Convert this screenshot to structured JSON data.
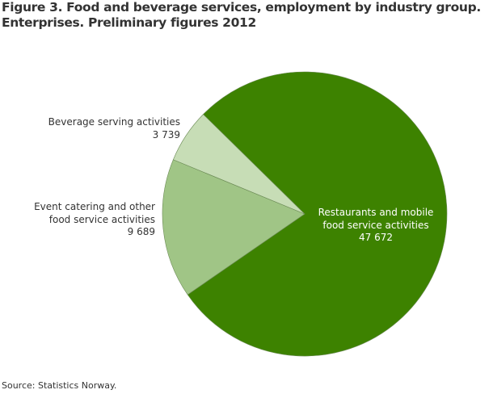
{
  "chart_data": {
    "type": "pie",
    "title": "Figure 3. Food and beverage services, employment by industry group. Enterprises. Preliminary figures 2012",
    "title_lines": [
      "Figure 3. Food and beverage services, employment by industry group.",
      "Enterprises. Preliminary figures 2012"
    ],
    "categories": [
      "Restaurants and mobile food service activities",
      "Event catering and other food service activities",
      "Beverage serving activities"
    ],
    "values": [
      47672,
      9689,
      3739
    ],
    "value_labels": [
      "47 672",
      "9 689",
      "3 739"
    ],
    "colors": [
      "#3d8200",
      "#a0c586",
      "#c7ddb6"
    ],
    "legend": "none (direct labels)",
    "source": "Source: Statistics Norway."
  },
  "labels": {
    "restaurants": [
      "Restaurants and mobile",
      "food service activities",
      "47 672"
    ],
    "event": [
      "Event catering and other",
      "food service activities",
      "9 689"
    ],
    "beverage": [
      "Beverage serving activities",
      "3 739"
    ]
  }
}
